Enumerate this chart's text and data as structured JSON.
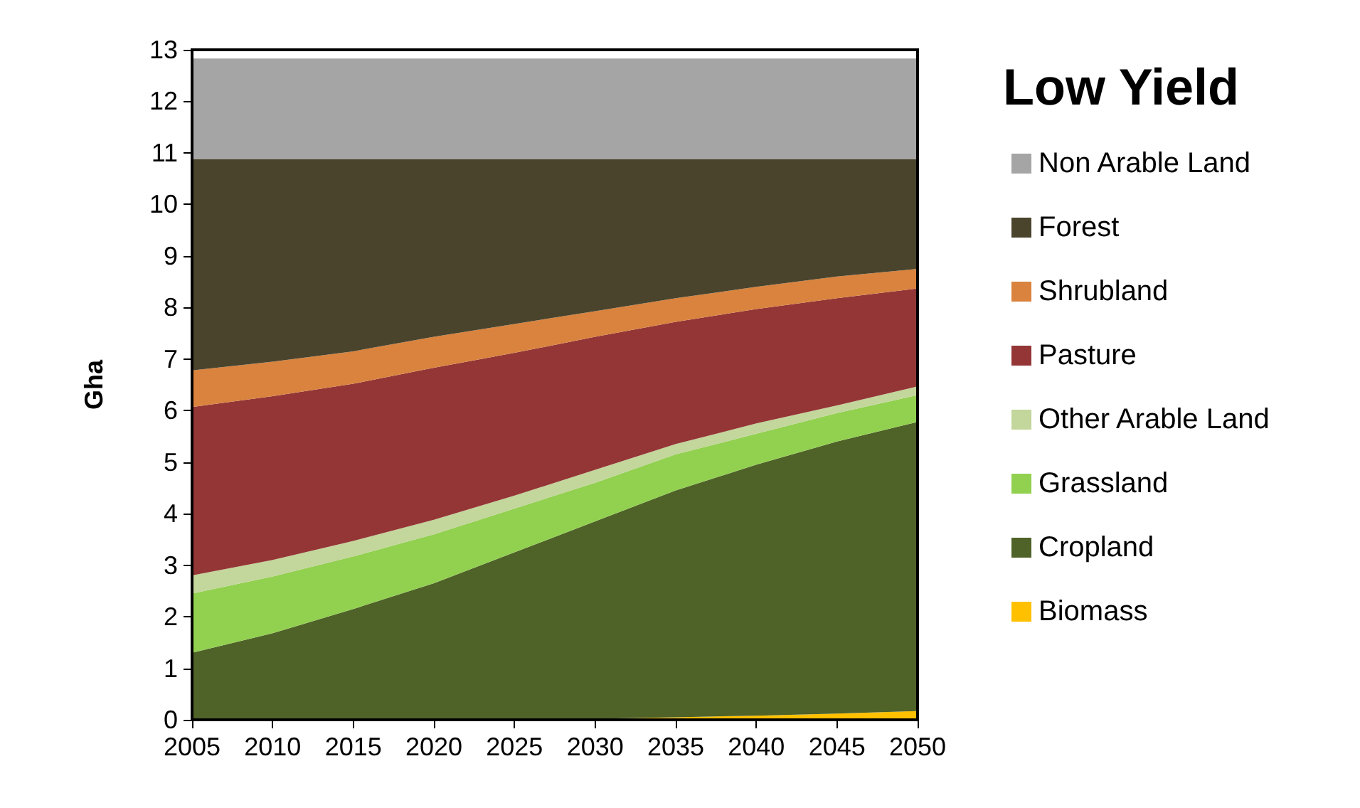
{
  "chart_data": {
    "type": "area",
    "title": "Low Yield",
    "ylabel": "Gha",
    "stacked": true,
    "x": [
      2005,
      2010,
      2015,
      2020,
      2025,
      2030,
      2035,
      2040,
      2045,
      2050
    ],
    "xlim": [
      2005,
      2050
    ],
    "xticks": [
      2005,
      2010,
      2015,
      2020,
      2025,
      2030,
      2035,
      2040,
      2045,
      2050
    ],
    "ylim": [
      0,
      13
    ],
    "yticks": [
      0,
      1,
      2,
      3,
      4,
      5,
      6,
      7,
      8,
      9,
      10,
      11,
      12,
      13
    ],
    "grid": false,
    "legend": "right",
    "series": [
      {
        "name": "Biomass",
        "color": "#ffc000",
        "values": [
          0,
          0,
          0,
          0,
          0,
          0.02,
          0.05,
          0.08,
          0.12,
          0.17
        ]
      },
      {
        "name": "Cropland",
        "color": "#4f6228",
        "values": [
          1.3,
          1.68,
          2.15,
          2.65,
          3.25,
          3.83,
          4.4,
          4.87,
          5.28,
          5.61
        ]
      },
      {
        "name": "Grassland",
        "color": "#92d050",
        "values": [
          1.15,
          1.1,
          1.02,
          0.95,
          0.85,
          0.75,
          0.7,
          0.6,
          0.55,
          0.52
        ]
      },
      {
        "name": "Other Arable Land",
        "color": "#c3d69b",
        "values": [
          0.35,
          0.32,
          0.3,
          0.28,
          0.25,
          0.25,
          0.2,
          0.2,
          0.15,
          0.17
        ]
      },
      {
        "name": "Pasture",
        "color": "#943636",
        "values": [
          3.27,
          3.18,
          3.05,
          2.95,
          2.77,
          2.58,
          2.37,
          2.22,
          2.08,
          1.9
        ]
      },
      {
        "name": "Shrubland",
        "color": "#d9833e",
        "values": [
          0.71,
          0.67,
          0.63,
          0.6,
          0.56,
          0.5,
          0.46,
          0.43,
          0.42,
          0.38
        ]
      },
      {
        "name": "Forest",
        "color": "#4a442d",
        "values": [
          4.1,
          3.93,
          3.73,
          3.45,
          3.2,
          2.95,
          2.7,
          2.48,
          2.28,
          2.13
        ]
      },
      {
        "name": "Non Arable Land",
        "color": "#a5a5a5",
        "values": [
          1.95,
          1.95,
          1.95,
          1.95,
          1.95,
          1.95,
          1.95,
          1.95,
          1.95,
          1.95
        ]
      }
    ]
  }
}
